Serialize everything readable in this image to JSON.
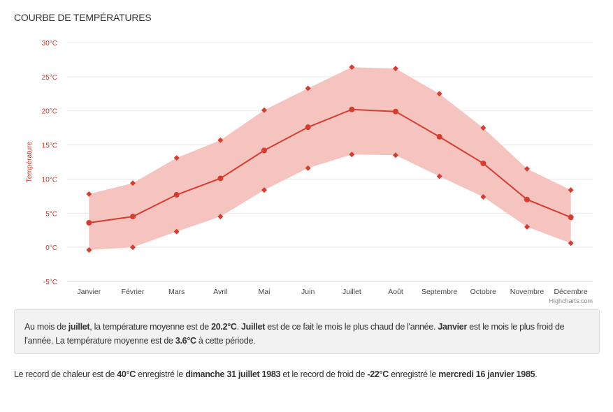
{
  "title": "COURBE DE TEMPÉRATURES",
  "chart_data": {
    "type": "line",
    "subtype": "line-with-arearange",
    "categories": [
      "Janvier",
      "Février",
      "Mars",
      "Avril",
      "Mai",
      "Juin",
      "Juillet",
      "Août",
      "Septembre",
      "Octobre",
      "Novembre",
      "Décembre"
    ],
    "series": [
      {
        "role": "mean",
        "values": [
          3.6,
          4.5,
          7.7,
          10.1,
          14.2,
          17.6,
          20.2,
          19.9,
          16.2,
          12.3,
          7.0,
          4.4
        ]
      },
      {
        "role": "range",
        "low": [
          -0.4,
          0.0,
          2.3,
          4.5,
          8.4,
          11.6,
          13.6,
          13.5,
          10.4,
          7.4,
          3.0,
          0.6
        ],
        "high": [
          7.8,
          9.4,
          13.1,
          15.7,
          20.1,
          23.3,
          26.4,
          26.2,
          22.5,
          17.5,
          11.5,
          8.4
        ]
      }
    ],
    "ylabel": "Température",
    "ylim": [
      -5,
      30
    ],
    "yticks": [
      "-5°C",
      "0°C",
      "5°C",
      "10°C",
      "15°C",
      "20°C",
      "25°C",
      "30°C"
    ],
    "ytick_values": [
      -5,
      0,
      5,
      10,
      15,
      20,
      25,
      30
    ],
    "grid": true,
    "legend": "none",
    "credit": "Highcharts.com",
    "colors": {
      "line": "#d63c2f",
      "range": "#f5c4bf",
      "axis_text": "#c0392b"
    }
  },
  "info": {
    "segments": [
      {
        "t": "Au mois de ",
        "b": false
      },
      {
        "t": "juillet",
        "b": true
      },
      {
        "t": ", la température moyenne est de ",
        "b": false
      },
      {
        "t": "20.2°C",
        "b": true
      },
      {
        "t": ". ",
        "b": false
      },
      {
        "t": "Juillet",
        "b": true
      },
      {
        "t": " est de ce fait le mois le plus chaud de l'année. ",
        "b": false
      },
      {
        "t": "Janvier",
        "b": true
      },
      {
        "t": " est le mois le plus froid de l'année. La température moyenne est de ",
        "b": false
      },
      {
        "t": "3.6°C",
        "b": true
      },
      {
        "t": " à cette période.",
        "b": false
      }
    ]
  },
  "record": {
    "segments": [
      {
        "t": "Le record de chaleur est de ",
        "b": false
      },
      {
        "t": "40°C",
        "b": true
      },
      {
        "t": " enregistré le ",
        "b": false
      },
      {
        "t": "dimanche 31 juillet 1983",
        "b": true
      },
      {
        "t": " et le record de froid de ",
        "b": false
      },
      {
        "t": "-22°C",
        "b": true
      },
      {
        "t": " enregistré le ",
        "b": false
      },
      {
        "t": "mercredi 16 janvier 1985",
        "b": true
      },
      {
        "t": ".",
        "b": false
      }
    ]
  }
}
